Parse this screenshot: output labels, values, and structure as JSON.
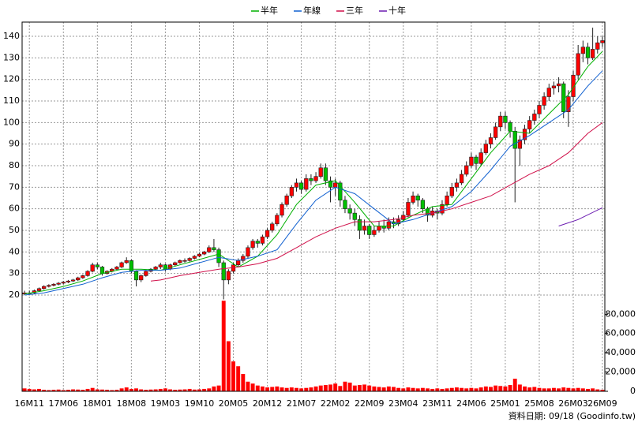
{
  "chart_data": {
    "type": "candlestick",
    "source": "資料日期: 09/18 (Goodinfo.tw)",
    "xlim": [
      -0.5,
      119.5
    ],
    "xticks": [
      {
        "value": 1,
        "label": "16M11"
      },
      {
        "value": 8,
        "label": "17M06"
      },
      {
        "value": 15,
        "label": "18M01"
      },
      {
        "value": 22,
        "label": "18M08"
      },
      {
        "value": 29,
        "label": "19M03"
      },
      {
        "value": 36,
        "label": "19M10"
      },
      {
        "value": 43,
        "label": "20M05"
      },
      {
        "value": 50,
        "label": "20M12"
      },
      {
        "value": 57,
        "label": "21M07"
      },
      {
        "value": 64,
        "label": "22M02"
      },
      {
        "value": 71,
        "label": "22M09"
      },
      {
        "value": 78,
        "label": "23M04"
      },
      {
        "value": 85,
        "label": "23M11"
      },
      {
        "value": 92,
        "label": "24M06"
      },
      {
        "value": 99,
        "label": "25M01"
      },
      {
        "value": 106,
        "label": "25M08"
      },
      {
        "value": 113,
        "label": "26M03"
      },
      {
        "value": 119,
        "label": "26M09"
      }
    ],
    "ylim": [
      17.8,
      146.6
    ],
    "yticks": [
      20,
      30,
      40,
      50,
      60,
      70,
      80,
      90,
      100,
      110,
      120,
      130,
      140
    ],
    "y2lim": [
      0,
      95000
    ],
    "y2ticks": [
      0,
      {
        "value": 20000,
        "label": "20,000"
      },
      {
        "value": 40000,
        "label": "40,000"
      },
      {
        "value": 60000,
        "label": "60,000"
      },
      {
        "value": 80000,
        "label": "80,000"
      }
    ],
    "grid": true,
    "up_color": "#ff0000",
    "down_color": "#00c000",
    "volume_color": "#ff0000",
    "ohlc": [
      [
        20.5,
        22,
        20,
        21
      ],
      [
        21,
        22,
        20.5,
        21
      ],
      [
        21,
        22.5,
        20.5,
        22
      ],
      [
        22,
        23.5,
        21.5,
        23
      ],
      [
        23,
        24.5,
        22.5,
        24
      ],
      [
        24,
        25,
        23.5,
        24.5
      ],
      [
        24.5,
        25.5,
        24,
        25
      ],
      [
        25,
        26,
        24.5,
        25.5
      ],
      [
        25.5,
        26.5,
        25,
        26
      ],
      [
        26,
        27,
        25.5,
        26.5
      ],
      [
        26.5,
        27.5,
        26,
        27
      ],
      [
        27,
        28.5,
        26.5,
        28
      ],
      [
        28,
        29.5,
        27.5,
        29
      ],
      [
        29,
        31.5,
        28.5,
        31
      ],
      [
        31,
        35,
        30.5,
        34
      ],
      [
        34,
        35,
        32,
        33
      ],
      [
        33,
        33.5,
        29,
        30
      ],
      [
        30,
        31.5,
        29.5,
        31
      ],
      [
        31,
        32.5,
        30.5,
        32
      ],
      [
        32,
        33.5,
        31.5,
        33
      ],
      [
        33,
        35.5,
        32.5,
        35
      ],
      [
        35,
        37.5,
        34.5,
        36
      ],
      [
        36,
        36.5,
        30,
        31
      ],
      [
        31,
        31.5,
        24,
        27
      ],
      [
        27,
        29.5,
        26,
        29
      ],
      [
        29,
        31.5,
        28.5,
        31
      ],
      [
        31,
        32.5,
        30.5,
        32
      ],
      [
        32,
        33.5,
        31.5,
        33
      ],
      [
        33,
        35,
        32,
        34
      ],
      [
        34,
        34.5,
        31,
        32
      ],
      [
        32,
        34.5,
        31.5,
        34
      ],
      [
        34,
        35.5,
        33.5,
        35
      ],
      [
        35,
        36.5,
        34.5,
        36
      ],
      [
        36,
        37,
        35,
        36
      ],
      [
        36,
        37.5,
        35.5,
        37
      ],
      [
        37,
        38.5,
        36.5,
        38
      ],
      [
        38,
        39.5,
        37.5,
        39
      ],
      [
        39,
        40.5,
        38.5,
        40
      ],
      [
        40,
        43,
        39.5,
        42
      ],
      [
        42,
        46,
        40,
        41
      ],
      [
        41,
        42,
        33,
        35
      ],
      [
        35,
        36,
        18,
        27
      ],
      [
        27,
        32,
        25,
        31
      ],
      [
        31,
        35,
        30,
        34
      ],
      [
        34,
        37,
        33,
        36
      ],
      [
        36,
        39,
        35,
        38
      ],
      [
        38,
        43,
        37,
        42
      ],
      [
        42,
        46,
        41,
        45
      ],
      [
        45,
        46,
        42,
        44
      ],
      [
        44,
        48,
        43,
        47
      ],
      [
        47,
        51,
        46,
        50
      ],
      [
        50,
        54,
        49,
        53
      ],
      [
        53,
        58,
        52,
        57
      ],
      [
        57,
        63,
        56,
        62
      ],
      [
        62,
        67,
        61,
        66
      ],
      [
        66,
        71,
        65,
        70
      ],
      [
        70,
        74,
        68,
        72
      ],
      [
        72,
        73,
        67,
        69
      ],
      [
        69,
        76,
        68,
        74
      ],
      [
        74,
        76,
        71,
        73
      ],
      [
        73,
        77,
        72,
        75
      ],
      [
        75,
        81,
        74,
        79
      ],
      [
        79,
        81,
        71,
        73
      ],
      [
        73,
        75,
        63,
        70
      ],
      [
        70,
        74,
        66,
        72
      ],
      [
        72,
        73,
        61,
        64
      ],
      [
        64,
        66,
        58,
        60
      ],
      [
        60,
        62,
        55,
        58
      ],
      [
        58,
        60,
        52,
        55
      ],
      [
        55,
        57,
        46,
        50
      ],
      [
        50,
        55,
        48,
        52
      ],
      [
        52,
        53,
        46,
        48
      ],
      [
        48,
        52,
        47,
        50
      ],
      [
        50,
        54,
        49,
        52
      ],
      [
        52,
        55,
        49,
        51
      ],
      [
        51,
        56,
        50,
        54
      ],
      [
        54,
        56,
        51,
        53
      ],
      [
        53,
        57,
        52,
        55
      ],
      [
        55,
        59,
        54,
        57
      ],
      [
        57,
        65,
        56,
        63
      ],
      [
        63,
        68,
        62,
        66
      ],
      [
        66,
        67,
        61,
        64
      ],
      [
        64,
        65,
        58,
        60
      ],
      [
        60,
        61,
        54,
        57
      ],
      [
        57,
        61,
        56,
        59
      ],
      [
        59,
        60,
        55,
        58
      ],
      [
        58,
        64,
        57,
        62
      ],
      [
        62,
        68,
        61,
        66
      ],
      [
        66,
        72,
        65,
        70
      ],
      [
        70,
        74,
        68,
        72
      ],
      [
        72,
        78,
        71,
        76
      ],
      [
        76,
        82,
        75,
        80
      ],
      [
        80,
        86,
        79,
        84
      ],
      [
        84,
        85,
        78,
        81
      ],
      [
        81,
        88,
        80,
        86
      ],
      [
        86,
        92,
        85,
        90
      ],
      [
        90,
        95,
        88,
        93
      ],
      [
        93,
        100,
        92,
        98
      ],
      [
        98,
        105,
        96,
        103
      ],
      [
        103,
        105,
        97,
        100
      ],
      [
        100,
        101,
        93,
        96
      ],
      [
        96,
        98,
        63,
        88
      ],
      [
        88,
        94,
        80,
        92
      ],
      [
        92,
        99,
        90,
        97
      ],
      [
        97,
        103,
        95,
        101
      ],
      [
        101,
        106,
        99,
        104
      ],
      [
        104,
        110,
        102,
        108
      ],
      [
        108,
        114,
        106,
        112
      ],
      [
        112,
        118,
        110,
        116
      ],
      [
        116,
        119,
        113,
        117
      ],
      [
        117,
        121,
        114,
        118
      ],
      [
        118,
        119,
        102,
        105
      ],
      [
        105,
        115,
        98,
        112
      ],
      [
        112,
        124,
        110,
        122
      ],
      [
        122,
        136,
        120,
        132
      ],
      [
        132,
        138,
        128,
        135
      ],
      [
        135,
        137,
        127,
        130
      ],
      [
        130,
        144,
        129,
        134
      ],
      [
        134,
        140,
        132,
        137
      ],
      [
        137,
        140,
        135,
        138
      ]
    ],
    "volume": [
      3000,
      2500,
      2000,
      2500,
      1500,
      1200,
      1500,
      1800,
      1200,
      1500,
      2000,
      1800,
      1500,
      2500,
      3500,
      2000,
      1800,
      1500,
      1200,
      1500,
      3000,
      4000,
      2500,
      3000,
      2000,
      1500,
      1800,
      2000,
      2500,
      3000,
      2000,
      1500,
      1800,
      2000,
      2500,
      1800,
      2000,
      2500,
      3000,
      5000,
      6000,
      94000,
      52000,
      31000,
      26000,
      18000,
      10000,
      8000,
      6000,
      5000,
      4000,
      4500,
      5000,
      4000,
      3500,
      4000,
      3500,
      3000,
      3500,
      4000,
      5000,
      6000,
      6500,
      7000,
      8000,
      5500,
      10000,
      9000,
      6000,
      6500,
      7000,
      6000,
      5000,
      4500,
      4000,
      5000,
      4500,
      3500,
      3000,
      4000,
      3500,
      3000,
      3500,
      3000,
      2500,
      3000,
      2500,
      3000,
      3500,
      4000,
      3500,
      3000,
      3500,
      3000,
      4000,
      5000,
      4500,
      6000,
      5500,
      5000,
      6500,
      13000,
      7000,
      5000,
      4000,
      4500,
      3500,
      3000,
      3000,
      3500,
      3000,
      4000,
      3500,
      3000,
      3500,
      3000,
      2500,
      3000,
      2000,
      1500
    ],
    "series": [
      {
        "name": "半年",
        "color": "#00b000",
        "x": [
          0,
          4,
          8,
          12,
          16,
          20,
          24,
          28,
          32,
          36,
          40,
          44,
          48,
          52,
          56,
          60,
          64,
          68,
          72,
          76,
          80,
          84,
          88,
          92,
          96,
          100,
          104,
          108,
          112,
          116,
          119
        ],
        "values": [
          20.5,
          22,
          24,
          26.5,
          30,
          32,
          32,
          31.5,
          34,
          36.5,
          39,
          33,
          38,
          48,
          62,
          71,
          73,
          63,
          52,
          52,
          57,
          61,
          62,
          74,
          86,
          96,
          95,
          104,
          113,
          126,
          133
        ]
      },
      {
        "name": "年線",
        "color": "#1060d0",
        "x": [
          0,
          4,
          8,
          12,
          16,
          20,
          24,
          28,
          32,
          36,
          40,
          44,
          48,
          52,
          56,
          60,
          64,
          68,
          72,
          76,
          80,
          84,
          88,
          92,
          96,
          100,
          104,
          108,
          112,
          116,
          119
        ],
        "values": [
          20,
          21,
          23,
          25,
          28,
          30.5,
          31.5,
          31.5,
          32.5,
          35,
          37.5,
          36,
          38,
          41,
          53,
          64,
          70,
          67,
          60,
          53,
          55,
          58,
          61,
          68,
          78,
          89,
          94,
          100,
          106,
          117,
          124
        ]
      },
      {
        "name": "三年",
        "color": "#d0104a",
        "x": [
          26,
          28,
          32,
          36,
          40,
          44,
          48,
          52,
          56,
          60,
          64,
          68,
          72,
          76,
          80,
          84,
          88,
          92,
          96,
          100,
          104,
          108,
          112,
          116,
          119
        ],
        "values": [
          26.5,
          27,
          29,
          30.5,
          32,
          33,
          34.5,
          37,
          42,
          47,
          51,
          54,
          54,
          55,
          57,
          58,
          60,
          63,
          66,
          71,
          76,
          80,
          86,
          95,
          100
        ]
      },
      {
        "name": "十年",
        "color": "#6a1ab0",
        "x": [
          110,
          114,
          119
        ],
        "values": [
          52,
          55,
          60.5
        ]
      }
    ]
  }
}
